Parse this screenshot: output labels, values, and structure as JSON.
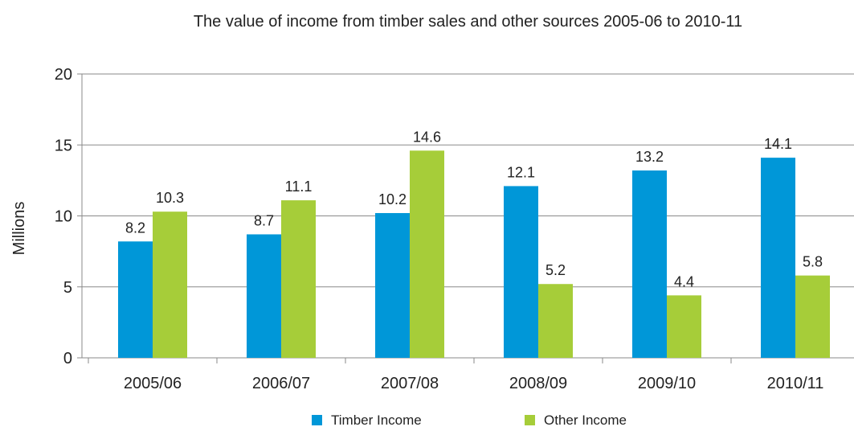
{
  "chart_data": {
    "type": "bar",
    "title": "The value of income from timber sales and other sources 2005-06 to 2010-11",
    "xlabel": "",
    "ylabel": "Millions",
    "ylim": [
      0,
      20
    ],
    "yticks": [
      0,
      5,
      10,
      15,
      20
    ],
    "grid": true,
    "legend_position": "bottom",
    "categories": [
      "2005/06",
      "2006/07",
      "2007/08",
      "2008/09",
      "2009/10",
      "2010/11"
    ],
    "series": [
      {
        "name": "Timber Income",
        "color": "#0097d8",
        "values": [
          8.2,
          8.7,
          10.2,
          12.1,
          13.2,
          14.1
        ]
      },
      {
        "name": "Other Income",
        "color": "#a6cd39",
        "values": [
          10.3,
          11.1,
          14.6,
          5.2,
          4.4,
          5.8
        ]
      }
    ]
  }
}
